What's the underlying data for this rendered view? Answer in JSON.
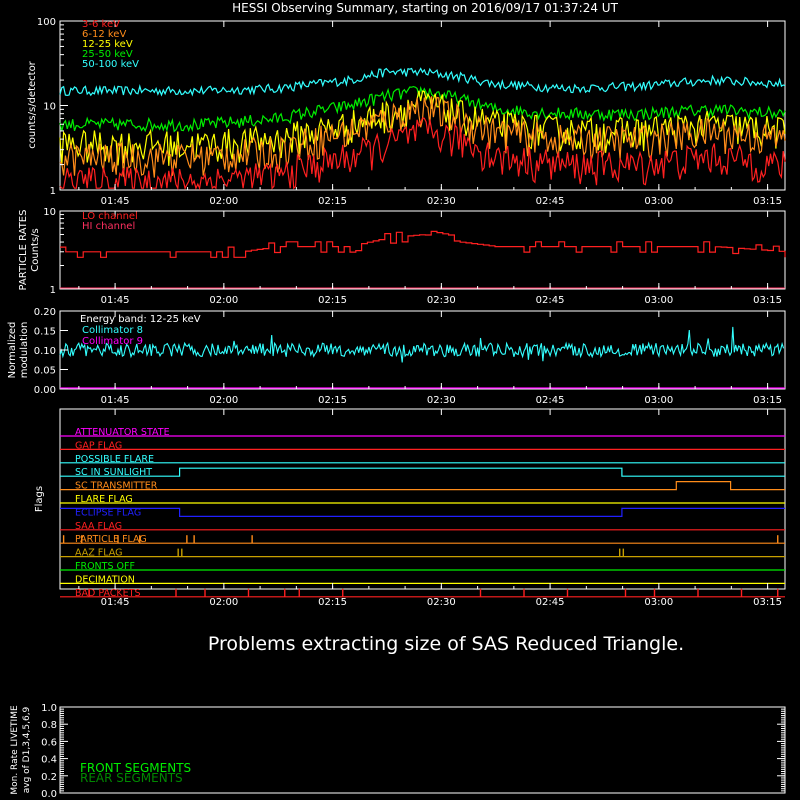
{
  "title": "HESSI Observing Summary, starting on 2016/09/17 01:37:24 UT",
  "message": "Problems extracting size of SAS Reduced Triangle.",
  "time_ticks": [
    "01:45",
    "02:00",
    "02:15",
    "02:30",
    "02:45",
    "03:00",
    "03:15"
  ],
  "time_tick_minutes": [
    7.6,
    22.6,
    37.6,
    52.6,
    67.6,
    82.6,
    97.6
  ],
  "time_range_minutes": [
    0,
    100
  ],
  "colors": {
    "3-6": "#ff2020",
    "6-12": "#ff8c1a",
    "12-25": "#ffff00",
    "25-50": "#00ee00",
    "50-100": "#33ffff",
    "lo": "#ff2020",
    "hi": "#ff3060",
    "cyan": "#33ffff",
    "magenta": "#ff00ff",
    "axis": "#ffffff"
  },
  "chart_data": [
    {
      "type": "line",
      "ylabel": "counts/s/detector",
      "yscale": "log",
      "ylim": [
        1,
        100
      ],
      "ytick_labels": [
        "1",
        "10",
        "100"
      ],
      "legend": [
        {
          "label": "3-6 keV",
          "color": "#ff2020"
        },
        {
          "label": "6-12 keV",
          "color": "#ff8c1a"
        },
        {
          "label": "12-25 keV",
          "color": "#ffff00"
        },
        {
          "label": "25-50 keV",
          "color": "#00ee00"
        },
        {
          "label": "50-100 keV",
          "color": "#33ffff"
        }
      ],
      "series": [
        {
          "name": "50-100 keV",
          "x": [
            0,
            10,
            20,
            30,
            40,
            45,
            50,
            55,
            60,
            70,
            80,
            90,
            100
          ],
          "y": [
            15,
            15,
            15,
            16,
            20,
            25,
            25,
            22,
            18,
            16,
            17,
            20,
            18
          ]
        },
        {
          "name": "25-50 keV",
          "x": [
            0,
            10,
            20,
            30,
            40,
            45,
            50,
            55,
            60,
            70,
            80,
            90,
            100
          ],
          "y": [
            6,
            6,
            6,
            7,
            10,
            13,
            15,
            12,
            9,
            8,
            8,
            9,
            8
          ]
        },
        {
          "name": "12-25 keV",
          "x": [
            0,
            10,
            20,
            30,
            40,
            45,
            50,
            55,
            60,
            70,
            80,
            90,
            100
          ],
          "y": [
            3.5,
            3.5,
            3.5,
            4,
            6,
            8,
            11,
            8,
            6,
            5,
            5,
            6,
            5
          ]
        },
        {
          "name": "6-12 keV",
          "x": [
            0,
            10,
            20,
            30,
            40,
            45,
            50,
            55,
            60,
            70,
            80,
            90,
            100
          ],
          "y": [
            2.5,
            2.5,
            2.5,
            3,
            5,
            7,
            10,
            7,
            5,
            4,
            4,
            5,
            4
          ]
        },
        {
          "name": "3-6 keV",
          "x": [
            0,
            10,
            20,
            30,
            40,
            45,
            50,
            55,
            60,
            70,
            80,
            90,
            100
          ],
          "y": [
            1.3,
            1.3,
            1.3,
            1.5,
            2.5,
            3.5,
            5,
            4,
            2.5,
            2,
            2,
            2.5,
            2
          ]
        }
      ]
    },
    {
      "type": "line",
      "ylabel": "PARTICLE RATES Counts/s",
      "yscale": "log",
      "ylim": [
        1,
        10
      ],
      "ytick_labels": [
        "1",
        "10"
      ],
      "legend": [
        {
          "label": "LO channel",
          "color": "#ff2020"
        },
        {
          "label": "HI channel",
          "color": "#ff3060"
        }
      ],
      "series": [
        {
          "name": "LO channel",
          "x": [
            0,
            25,
            30,
            40,
            45,
            50,
            55,
            60,
            70,
            80,
            90,
            100
          ],
          "y": [
            3,
            3,
            3.5,
            3.5,
            4.5,
            5,
            4,
            3.5,
            3.5,
            3.5,
            3.5,
            3
          ]
        }
      ]
    },
    {
      "type": "scatter",
      "ylabel": "Normalized modulation",
      "ylim": [
        0.0,
        0.2
      ],
      "ytick_labels": [
        "0.00",
        "0.05",
        "0.10",
        "0.15",
        "0.20"
      ],
      "annotation": "Energy band: 12-25 keV",
      "legend": [
        {
          "label": "Collimator 8",
          "color": "#33ffff"
        },
        {
          "label": "Collimator 9",
          "color": "#ff00ff"
        }
      ],
      "series": [
        {
          "name": "Collimator 8",
          "y_mean": 0.1
        },
        {
          "name": "Collimator 9",
          "x": [
            0,
            100
          ],
          "y": [
            0.0,
            0.0
          ]
        }
      ]
    },
    {
      "type": "line",
      "ylabel": "Flags",
      "flags": [
        {
          "label": "ATTENUATOR STATE",
          "color": "#ff00ff",
          "segments": [
            [
              0,
              100,
              0
            ]
          ]
        },
        {
          "label": "GAP FLAG",
          "color": "#ff2020",
          "segments": [
            [
              0,
              100,
              0
            ]
          ]
        },
        {
          "label": "POSSIBLE FLARE",
          "color": "#33ffff",
          "segments": [
            [
              0,
              100,
              0
            ]
          ]
        },
        {
          "label": "SC IN SUNLIGHT",
          "color": "#33ffff",
          "segments": [
            [
              0,
              16.5,
              0
            ],
            [
              16.5,
              77.5,
              1
            ],
            [
              77.5,
              100,
              0
            ]
          ]
        },
        {
          "label": "SC TRANSMITTER",
          "color": "#ff8c1a",
          "segments": [
            [
              0,
              85,
              0
            ],
            [
              85,
              92.5,
              1
            ],
            [
              92.5,
              100,
              0
            ]
          ]
        },
        {
          "label": "FLARE FLAG",
          "color": "#ffff00",
          "segments": [
            [
              0,
              100,
              0
            ]
          ]
        },
        {
          "label": "ECLIPSE FLAG",
          "color": "#2020ff",
          "segments": [
            [
              0,
              16.5,
              1
            ],
            [
              16.5,
              77.5,
              0
            ],
            [
              77.5,
              100,
              1
            ]
          ]
        },
        {
          "label": "SAA FLAG",
          "color": "#ff2020",
          "segments": [
            [
              0,
              100,
              0
            ]
          ]
        },
        {
          "label": "PARTICLE FLAG",
          "color": "#ff8c1a",
          "spikes": [
            0.5,
            3,
            8,
            11,
            17.5,
            18.5,
            26.5,
            99
          ]
        },
        {
          "label": "AAZ FLAG",
          "color": "#c8a000",
          "spikes": [
            16.3,
            16.8,
            77.2,
            77.7
          ]
        },
        {
          "label": "FRONTS OFF",
          "color": "#00ee00",
          "segments": [
            [
              0,
              100,
              0
            ]
          ]
        },
        {
          "label": "DECIMATION",
          "color": "#ffff00",
          "segments": [
            [
              0,
              100,
              0
            ]
          ]
        },
        {
          "label": "BAD PACKETS",
          "color": "#ff2020",
          "spikes": [
            4,
            16,
            20,
            26,
            31,
            33,
            39,
            58,
            64,
            70,
            78,
            82,
            88,
            94,
            99
          ]
        }
      ]
    },
    {
      "type": "line",
      "ylabel": "Mon. Rate LIVETIME avg of D1,3,4,5,6,9",
      "ylim": [
        0.0,
        1.0
      ],
      "ytick_labels": [
        "0.0",
        "0.2",
        "0.4",
        "0.6",
        "0.8",
        "1.0"
      ],
      "legend": [
        {
          "label": "FRONT SEGMENTS",
          "color": "#00ee00"
        },
        {
          "label": "REAR SEGMENTS",
          "color": "#008800"
        }
      ],
      "series": []
    }
  ]
}
